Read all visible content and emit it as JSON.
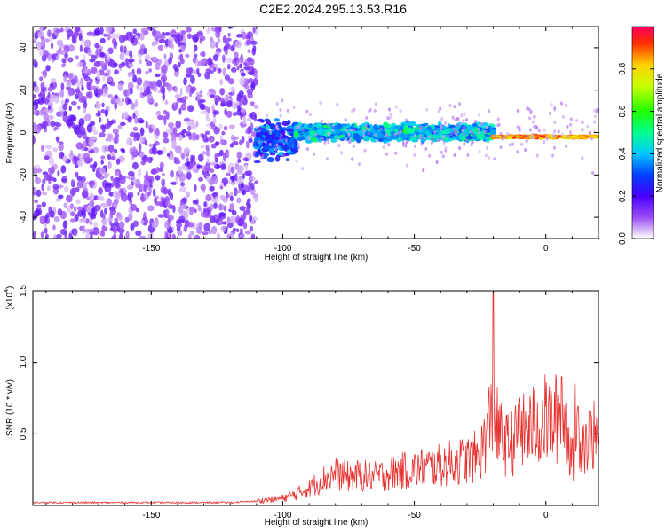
{
  "title": "C2E2.2024.295.13.53.R16",
  "colors": {
    "snr_line": "#e8312f",
    "spectrogram_noise": "#7a2cf0",
    "background": "#ffffff"
  },
  "chart_data": [
    {
      "type": "heatmap",
      "xlabel": "Height of straight line (km)",
      "ylabel": "Frequency (Hz)",
      "xlim": [
        -195,
        20
      ],
      "ylim": [
        -50,
        50
      ],
      "xticks": [
        -150,
        -100,
        -50,
        0
      ],
      "yticks": [
        -40,
        -20,
        0,
        20,
        40
      ],
      "colorbar": {
        "label": "Normalized spectral amplitude",
        "range": [
          0.0,
          1.0
        ],
        "ticks": [
          0.0,
          0.2,
          0.4,
          0.6,
          0.8
        ],
        "colormap": "rainbow (magenta-blue-cyan-green-yellow-red)"
      },
      "regions": [
        {
          "x_range": [
            -195,
            -110
          ],
          "freq_center": 0,
          "freq_spread": 50,
          "amplitude": 0.05,
          "note": "broadband noise"
        },
        {
          "x_range": [
            -110,
            -95
          ],
          "freq_center": -3,
          "freq_spread": 12,
          "amplitude": 0.2
        },
        {
          "x_range": [
            -95,
            -20
          ],
          "freq_center": 0,
          "freq_spread": 5,
          "amplitude": 0.3
        },
        {
          "x_range": [
            -20,
            20
          ],
          "freq_center": -2,
          "freq_spread": 1,
          "amplitude": 0.9
        }
      ]
    },
    {
      "type": "line",
      "xlabel": "Height of straight line (km)",
      "ylabel": "SNR (10 * v/v)",
      "yscale_label": "(x10",
      "yscale_exponent": "4",
      "xlim": [
        -195,
        20
      ],
      "ylim": [
        0,
        1.5
      ],
      "xticks": [
        -150,
        -100,
        -50,
        0
      ],
      "yticks": [
        0.5,
        1.0,
        1.5
      ],
      "ytick_labels": [
        "0.5",
        "1.0",
        "1.5"
      ],
      "series": [
        {
          "x": [
            -195,
            -180,
            -160,
            -140,
            -120,
            -110,
            -105,
            -100,
            -95,
            -90,
            -85,
            -80,
            -75,
            -70,
            -65,
            -60,
            -55,
            -50,
            -45,
            -40,
            -35,
            -30,
            -25,
            -22,
            -20,
            -18,
            -15,
            -12,
            -10,
            -7,
            -5,
            -2,
            0,
            2,
            5,
            7,
            9,
            10,
            12,
            15,
            18,
            20
          ],
          "y": [
            0.02,
            0.02,
            0.02,
            0.02,
            0.02,
            0.03,
            0.04,
            0.05,
            0.08,
            0.12,
            0.18,
            0.22,
            0.2,
            0.21,
            0.2,
            0.22,
            0.24,
            0.25,
            0.27,
            0.28,
            0.3,
            0.32,
            0.35,
            0.55,
            0.65,
            0.5,
            0.42,
            0.45,
            0.5,
            0.52,
            0.55,
            0.58,
            0.6,
            0.58,
            0.62,
            0.58,
            0.45,
            0.3,
            0.55,
            0.45,
            0.48,
            0.45
          ]
        }
      ],
      "peaks": [
        {
          "x": -20,
          "y": 1.5
        },
        {
          "x": 6,
          "y": 0.9
        },
        {
          "x": 11,
          "y": 0.85
        },
        {
          "x": -10,
          "y": 0.75
        }
      ]
    }
  ]
}
